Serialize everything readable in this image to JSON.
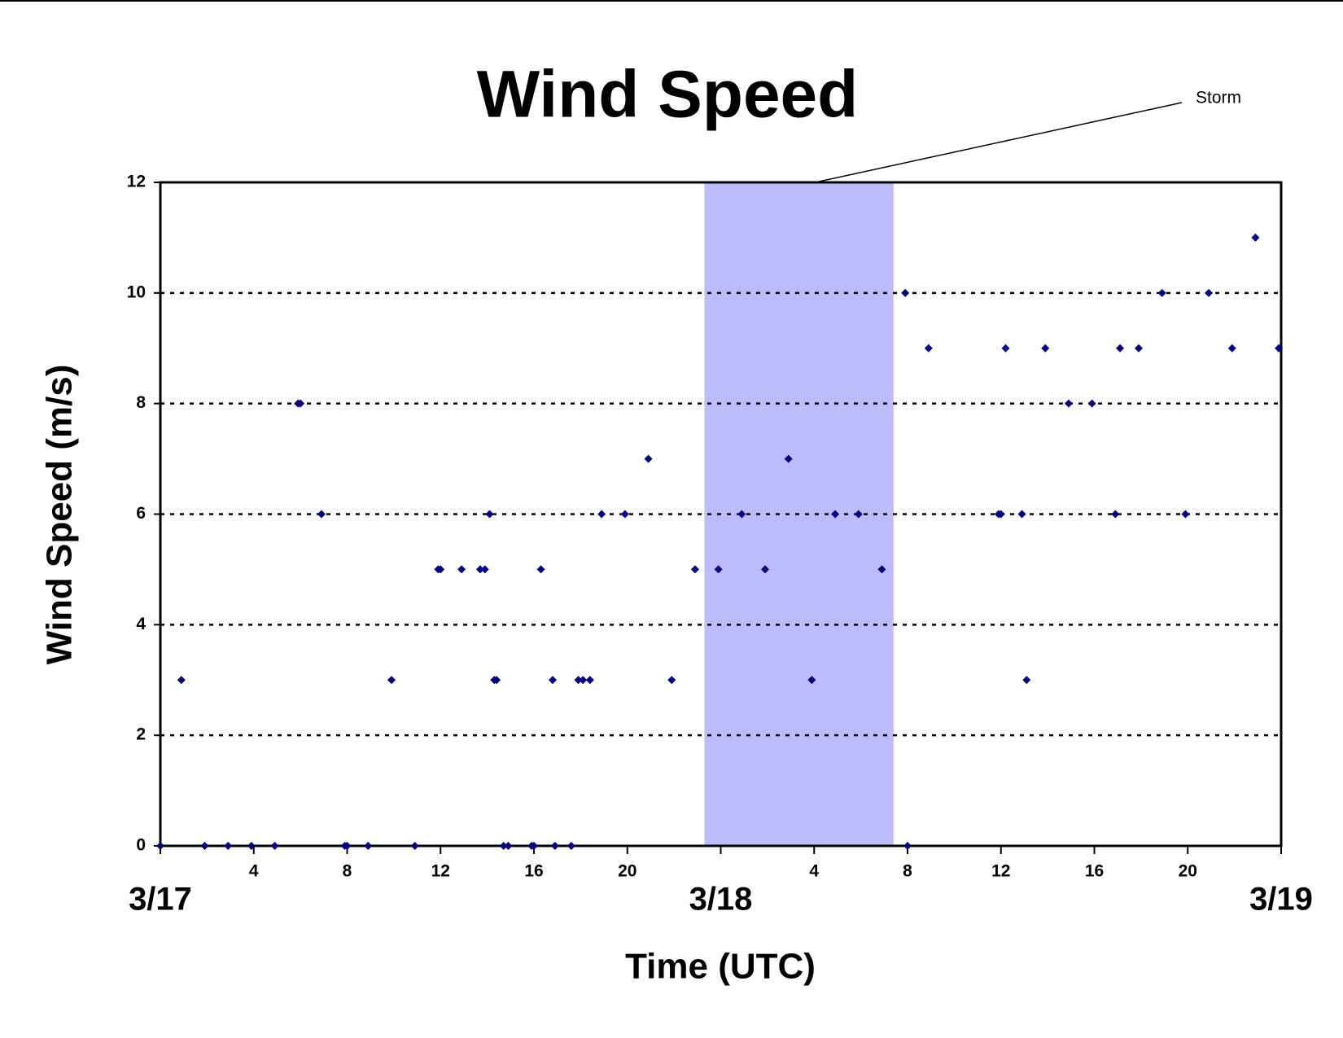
{
  "chart_data": {
    "type": "scatter",
    "title": "Wind Speed",
    "xlabel": "Time (UTC)",
    "ylabel": "Wind Speed (m/s)",
    "x": [
      0,
      0.9,
      1.9,
      2.9,
      3.9,
      4.9,
      5.9,
      6.0,
      6.9,
      7.9,
      8.0,
      8.9,
      9.9,
      10.9,
      11.9,
      12.0,
      12.9,
      13.7,
      13.9,
      14.1,
      14.3,
      14.4,
      14.7,
      14.9,
      15.9,
      16.0,
      16.3,
      16.8,
      16.9,
      17.6,
      17.9,
      18.1,
      18.4,
      18.9,
      19.9,
      20.9,
      21.9,
      22.9,
      23.9,
      24.9,
      25.9,
      26.9,
      27.9,
      28.9,
      29.9,
      30.9,
      31.9,
      32.0,
      32.9,
      35.9,
      36.0,
      36.2,
      36.9,
      37.1,
      37.9,
      38.9,
      39.9,
      40.9,
      41.1,
      41.9,
      42.9,
      43.9,
      44.9,
      45.9,
      46.9,
      47.9
    ],
    "values": [
      0,
      3,
      0,
      0,
      0,
      0,
      8,
      8,
      6,
      0,
      0,
      0,
      3,
      0,
      5,
      5,
      5,
      5,
      5,
      6,
      3,
      3,
      0,
      0,
      0,
      0,
      5,
      3,
      0,
      0,
      3,
      3,
      3,
      6,
      6,
      7,
      3,
      5,
      5,
      6,
      5,
      7,
      3,
      6,
      6,
      5,
      10,
      0,
      9,
      6,
      6,
      9,
      6,
      3,
      9,
      8,
      8,
      6,
      9,
      9,
      10,
      6,
      10,
      9,
      11,
      9
    ],
    "color": "#000080",
    "xlim": [
      0,
      48
    ],
    "ylim": [
      0,
      12
    ],
    "yticks": [
      0,
      2,
      4,
      6,
      8,
      10,
      12
    ],
    "xticks": [
      4,
      8,
      12,
      16,
      20,
      {
        "value": 28,
        "label": "4"
      },
      {
        "value": 32,
        "label": "8"
      },
      {
        "value": 36,
        "label": "12"
      },
      {
        "value": 40,
        "label": "16"
      },
      {
        "value": 44,
        "label": "20"
      }
    ],
    "date_ticks": [
      {
        "value": 0,
        "label": "3/17"
      },
      {
        "value": 24,
        "label": "3/18"
      },
      {
        "value": 48,
        "label": "3/19"
      }
    ],
    "storm_band": [
      23.3,
      31.4
    ],
    "band_color": "#bcbcfc",
    "annotation": "Storm",
    "grid": true
  }
}
